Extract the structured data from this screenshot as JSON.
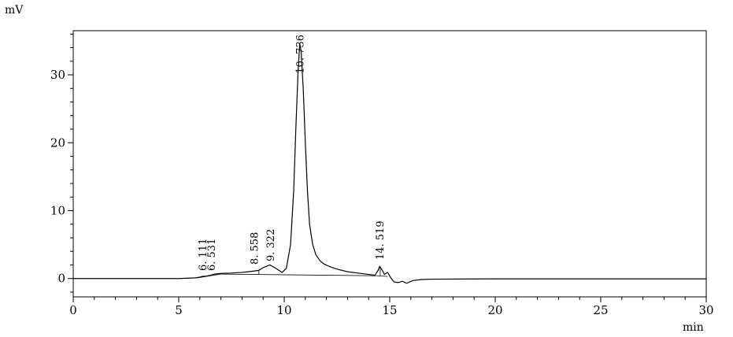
{
  "chart_data": {
    "type": "line",
    "title": "",
    "xlabel": "min",
    "ylabel": "mV",
    "xlim": [
      0,
      30
    ],
    "ylim": [
      -2.7,
      36.5
    ],
    "grid": false,
    "x_ticks": [
      0,
      5,
      10,
      15,
      20,
      25,
      30
    ],
    "x_tick_labels": [
      "0",
      "5",
      "10",
      "15",
      "20",
      "25",
      "30"
    ],
    "y_ticks": [
      0,
      10,
      20,
      30
    ],
    "y_tick_labels": [
      "0",
      "10",
      "20",
      "30"
    ],
    "series": [
      {
        "x": [
          0,
          5.0,
          5.8,
          6.0,
          6.111,
          6.3,
          6.531,
          6.7,
          7.0,
          7.5,
          8.0,
          8.3,
          8.558,
          8.8,
          9.0,
          9.322,
          9.6,
          9.9,
          10.1,
          10.3,
          10.45,
          10.55,
          10.65,
          10.736,
          10.8,
          10.9,
          11.0,
          11.1,
          11.2,
          11.35,
          11.5,
          11.7,
          11.9,
          12.2,
          12.6,
          13.0,
          13.5,
          14.0,
          14.3,
          14.45,
          14.519,
          14.65,
          14.75,
          14.9,
          15.05,
          15.2,
          15.4,
          15.6,
          15.8,
          16.1,
          16.5,
          17.0,
          20.0,
          25.0,
          30.0
        ],
        "y": [
          0,
          0,
          0.1,
          0.2,
          0.3,
          0.35,
          0.5,
          0.65,
          0.75,
          0.8,
          0.9,
          1.0,
          1.1,
          1.2,
          1.6,
          2.0,
          1.5,
          0.9,
          1.5,
          5.0,
          13.0,
          22.0,
          30.0,
          34.6,
          33.5,
          28.0,
          20.0,
          13.0,
          8.0,
          5.0,
          3.5,
          2.6,
          2.1,
          1.7,
          1.3,
          1.0,
          0.8,
          0.6,
          0.5,
          1.2,
          1.8,
          1.2,
          0.6,
          0.9,
          0.1,
          -0.5,
          -0.6,
          -0.4,
          -0.7,
          -0.3,
          -0.15,
          -0.1,
          -0.05,
          -0.05,
          -0.05
        ]
      }
    ],
    "baselines": [
      {
        "x": [
          5.9,
          7.0
        ],
        "y": [
          0.1,
          0.65
        ]
      },
      {
        "x": [
          7.0,
          14.5
        ],
        "y": [
          0.65,
          0.4
        ]
      },
      {
        "x": [
          14.5,
          14.9
        ],
        "y": [
          0.4,
          0.3
        ]
      }
    ],
    "peak_markers": [
      {
        "x": 8.8,
        "y_low": 0.62,
        "y_high": 1.2
      },
      {
        "x": 14.55,
        "y_low": 0.4,
        "y_high": 1.7
      }
    ],
    "peaks": [
      {
        "label": "6.111",
        "x": 6.111
      },
      {
        "label": "6.531",
        "x": 6.531
      },
      {
        "label": "8.558",
        "x": 8.558
      },
      {
        "label": "9.322",
        "x": 9.322
      },
      {
        "label": "10.736",
        "x": 10.736
      },
      {
        "label": "14.519",
        "x": 14.519
      }
    ],
    "peak_label_text": [
      "6. 111",
      "6. 531",
      "8. 558",
      "9. 322",
      "10. 736",
      "14. 519"
    ]
  }
}
